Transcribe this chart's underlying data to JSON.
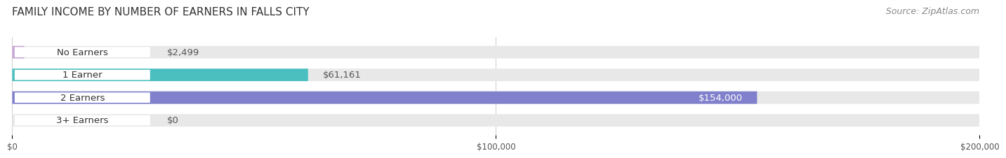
{
  "title": "FAMILY INCOME BY NUMBER OF EARNERS IN FALLS CITY",
  "source": "Source: ZipAtlas.com",
  "categories": [
    "No Earners",
    "1 Earner",
    "2 Earners",
    "3+ Earners"
  ],
  "values": [
    2499,
    61161,
    154000,
    0
  ],
  "value_labels": [
    "$2,499",
    "$61,161",
    "$154,000",
    "$0"
  ],
  "bar_colors": [
    "#c9a8d4",
    "#4bbfbf",
    "#8080cc",
    "#f9a0b8"
  ],
  "bar_bg_color": "#ebebeb",
  "bar_label_bg": "#ffffff",
  "xlim": [
    0,
    200000
  ],
  "xtick_values": [
    0,
    100000,
    200000
  ],
  "xtick_labels": [
    "$0",
    "$100,000",
    "$200,000"
  ],
  "title_fontsize": 11,
  "source_fontsize": 9,
  "label_fontsize": 9.5,
  "value_fontsize": 9.5,
  "bar_height": 0.55,
  "fig_bg_color": "#ffffff",
  "bar_track_color": "#e8e8e8"
}
